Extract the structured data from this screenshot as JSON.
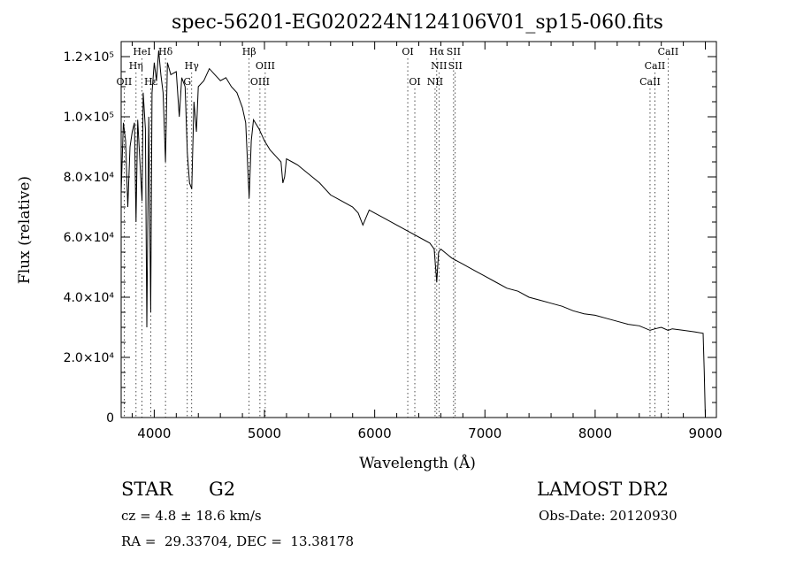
{
  "chart_data": {
    "type": "line",
    "title": "spec-56201-EG020224N124106V01_sp15-060.fits",
    "xlabel": "Wavelength (Å)",
    "ylabel": "Flux (relative)",
    "xlim": [
      3700,
      9100
    ],
    "ylim": [
      0,
      125000
    ],
    "x_ticks": [
      4000,
      5000,
      6000,
      7000,
      8000,
      9000
    ],
    "y_ticks": [
      {
        "value": 0,
        "label": "0"
      },
      {
        "value": 20000,
        "label": "2.0×10⁴"
      },
      {
        "value": 40000,
        "label": "4.0×10⁴"
      },
      {
        "value": 60000,
        "label": "6.0×10⁴"
      },
      {
        "value": 80000,
        "label": "8.0×10⁴"
      },
      {
        "value": 100000,
        "label": "1.0×10⁵"
      },
      {
        "value": 120000,
        "label": "1.2×10⁵"
      }
    ],
    "grid": false,
    "series": [
      {
        "x": [
          3700,
          3720,
          3740,
          3760,
          3780,
          3800,
          3820,
          3835,
          3850,
          3870,
          3889,
          3900,
          3920,
          3933,
          3950,
          3968,
          3980,
          4000,
          4020,
          4040,
          4060,
          4080,
          4102,
          4120,
          4150,
          4200,
          4227,
          4250,
          4280,
          4300,
          4320,
          4340,
          4360,
          4383,
          4400,
          4450,
          4500,
          4550,
          4600,
          4650,
          4700,
          4750,
          4800,
          4830,
          4861,
          4880,
          4900,
          4950,
          5000,
          5050,
          5100,
          5150,
          5167,
          5183,
          5200,
          5250,
          5300,
          5400,
          5500,
          5600,
          5700,
          5800,
          5850,
          5893,
          5950,
          6000,
          6100,
          6200,
          6300,
          6400,
          6500,
          6540,
          6563,
          6580,
          6600,
          6700,
          6800,
          6900,
          7000,
          7100,
          7200,
          7300,
          7400,
          7500,
          7600,
          7700,
          7800,
          7900,
          8000,
          8100,
          8200,
          8300,
          8400,
          8498,
          8542,
          8600,
          8662,
          8700,
          8800,
          8900,
          8980,
          8990,
          9000
        ],
        "y": [
          75000,
          98000,
          92000,
          70000,
          90000,
          95000,
          98000,
          65000,
          99000,
          85000,
          72000,
          108000,
          96000,
          30000,
          100000,
          35000,
          108000,
          118000,
          112000,
          122000,
          114000,
          108000,
          85000,
          118000,
          114000,
          115000,
          100000,
          113000,
          110000,
          88000,
          78000,
          76000,
          105000,
          95000,
          110000,
          112000,
          116000,
          114000,
          112000,
          113000,
          110000,
          108000,
          103000,
          98000,
          73000,
          92000,
          99000,
          96000,
          92000,
          89000,
          87000,
          85000,
          78000,
          80000,
          86000,
          85000,
          84000,
          81000,
          78000,
          74000,
          72000,
          70000,
          68000,
          64000,
          69000,
          68000,
          66000,
          64000,
          62000,
          60000,
          58000,
          56000,
          45000,
          55000,
          56000,
          53000,
          51000,
          49000,
          47000,
          45000,
          43000,
          42000,
          40000,
          39000,
          38000,
          37000,
          35500,
          34500,
          34000,
          33000,
          32000,
          31000,
          30500,
          29000,
          29500,
          30000,
          29000,
          29500,
          29000,
          28500,
          28000,
          15000,
          0
        ]
      }
    ],
    "lines": [
      {
        "x": 3727,
        "label": "OII",
        "row": 3
      },
      {
        "x": 3835,
        "label": "Hη",
        "row": 2
      },
      {
        "x": 3889,
        "label": "HeI",
        "row": 1
      },
      {
        "x": 3970,
        "label": "Hε",
        "row": 3
      },
      {
        "x": 4102,
        "label": "Hδ",
        "row": 1
      },
      {
        "x": 4300,
        "label": "G",
        "row": 3
      },
      {
        "x": 4340,
        "label": "Hγ",
        "row": 2
      },
      {
        "x": 4861,
        "label": "Hβ",
        "row": 1
      },
      {
        "x": 4959,
        "label": "OIII",
        "row": 3
      },
      {
        "x": 5007,
        "label": "OIII",
        "row": 2
      },
      {
        "x": 6300,
        "label": "OI",
        "row": 1
      },
      {
        "x": 6364,
        "label": "OI",
        "row": 3
      },
      {
        "x": 6548,
        "label": "NII",
        "row": 3
      },
      {
        "x": 6563,
        "label": "Hα",
        "row": 1
      },
      {
        "x": 6583,
        "label": "NII",
        "row": 2
      },
      {
        "x": 6716,
        "label": "SII",
        "row": 1
      },
      {
        "x": 6731,
        "label": "SII",
        "row": 2
      },
      {
        "x": 8498,
        "label": "CaII",
        "row": 3
      },
      {
        "x": 8542,
        "label": "CaII",
        "row": 2
      },
      {
        "x": 8662,
        "label": "CaII",
        "row": 1
      }
    ]
  },
  "info": {
    "object_class": "STAR",
    "subclass": "G2",
    "survey": "LAMOST DR2",
    "redshift": "cz = 4.8 ± 18.6 km/s",
    "obs_date": "Obs-Date: 20120930",
    "coords": "RA =  29.33704, DEC =  13.38178"
  }
}
